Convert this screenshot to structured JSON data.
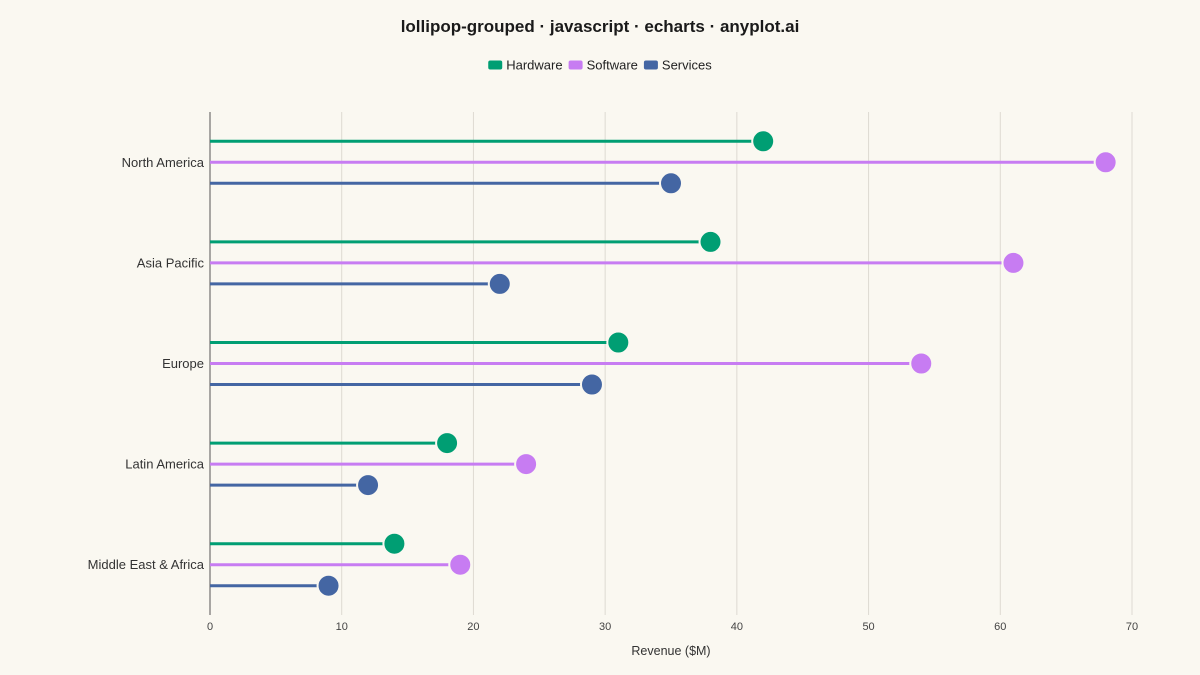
{
  "chart_data": {
    "type": "lollipop-grouped",
    "orientation": "horizontal",
    "title": "lollipop-grouped · javascript · echarts · anyplot.ai",
    "xlabel": "Revenue ($M)",
    "ylabel": "",
    "xlim": [
      0,
      70
    ],
    "x_ticks": [
      0,
      10,
      20,
      30,
      40,
      50,
      60,
      70
    ],
    "grid": {
      "x": true,
      "y": false
    },
    "legend_placement": "top-center",
    "categories": [
      "North America",
      "Asia Pacific",
      "Europe",
      "Latin America",
      "Middle East & Africa"
    ],
    "series": [
      {
        "name": "Hardware",
        "color": "#009E73",
        "values": [
          42,
          38,
          31,
          18,
          14
        ]
      },
      {
        "name": "Software",
        "color": "#C77CF2",
        "values": [
          68,
          61,
          54,
          24,
          19
        ]
      },
      {
        "name": "Services",
        "color": "#4466A3",
        "values": [
          35,
          22,
          29,
          12,
          9
        ]
      }
    ]
  }
}
